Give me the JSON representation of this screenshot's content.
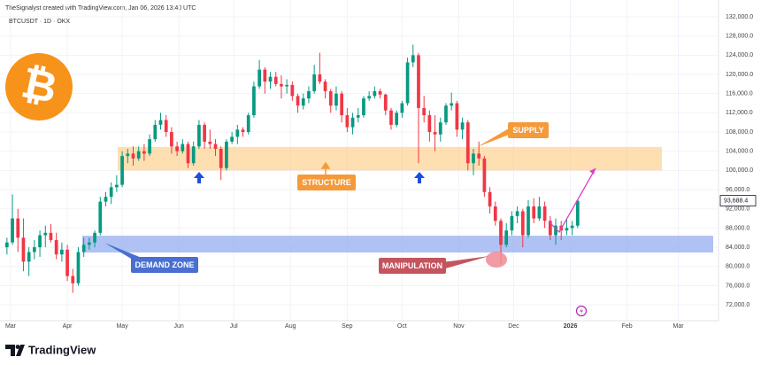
{
  "header": {
    "attribution": "TheSignalyst created with TradingView.com, Jan 06, 2026 13:40 UTC",
    "brand": "TradingView"
  },
  "chart_data": {
    "type": "candlestick",
    "title": "BTCUSDT · 1D · OKX",
    "logo": "₿",
    "up_color": "#089981",
    "down_color": "#f23645",
    "grid": true,
    "xlim": [
      -5.8,
      387
    ],
    "ylim": [
      68700,
      135500
    ],
    "xticks": [
      {
        "value": 0,
        "label": "Mar"
      },
      {
        "value": 31,
        "label": "Apr"
      },
      {
        "value": 61,
        "label": "May"
      },
      {
        "value": 92,
        "label": "Jun"
      },
      {
        "value": 122,
        "label": "Jul"
      },
      {
        "value": 153,
        "label": "Aug"
      },
      {
        "value": 184,
        "label": "Sep"
      },
      {
        "value": 214,
        "label": "Oct"
      },
      {
        "value": 245,
        "label": "Nov"
      },
      {
        "value": 275,
        "label": "Dec"
      },
      {
        "value": 306,
        "label": "2026"
      },
      {
        "value": 337,
        "label": "Feb"
      },
      {
        "value": 365,
        "label": "Mar"
      }
    ],
    "yticks": [
      {
        "value": 72000,
        "label": "72,000.0"
      },
      {
        "value": 76000,
        "label": "76,000.0"
      },
      {
        "value": 80000,
        "label": "80,000.0"
      },
      {
        "value": 84000,
        "label": "84,000.0"
      },
      {
        "value": 88000,
        "label": "88,000.0"
      },
      {
        "value": 92000,
        "label": "92,000.0"
      },
      {
        "value": 96000,
        "label": "96,000.0"
      },
      {
        "value": 100000,
        "label": "100,000.0"
      },
      {
        "value": 104000,
        "label": "104,000.0"
      },
      {
        "value": 108000,
        "label": "108,000.0"
      },
      {
        "value": 112000,
        "label": "112,000.0"
      },
      {
        "value": 116000,
        "label": "116,000.0"
      },
      {
        "value": 120000,
        "label": "120,000.0"
      },
      {
        "value": 124000,
        "label": "124,000.0"
      },
      {
        "value": 128000,
        "label": "128,000.0"
      },
      {
        "value": 132000,
        "label": "132,000.0"
      }
    ],
    "last_price": {
      "value": 93688.4,
      "label": "93,688.4"
    },
    "zones": {
      "supply": [
        100000,
        104900
      ],
      "demand": [
        82900,
        86400
      ]
    },
    "annotations": {
      "supply": "SUPPLY",
      "structure": "STRUCTURE",
      "demand": "DEMAND ZONE",
      "manipulation": "MANIPULATION"
    },
    "x": [
      -2,
      1,
      4,
      7,
      10,
      13,
      16,
      19,
      22,
      25,
      28,
      31,
      34,
      37,
      40,
      43,
      46,
      49,
      52,
      55,
      58,
      61,
      64,
      67,
      70,
      73,
      76,
      79,
      82,
      85,
      88,
      91,
      94,
      97,
      100,
      103,
      106,
      109,
      112,
      115,
      118,
      121,
      124,
      127,
      130,
      133,
      136,
      139,
      142,
      145,
      148,
      151,
      154,
      157,
      160,
      163,
      166,
      169,
      172,
      175,
      178,
      181,
      184,
      187,
      190,
      193,
      196,
      199,
      202,
      205,
      208,
      211,
      214,
      217,
      220,
      223,
      226,
      229,
      232,
      235,
      238,
      241,
      244,
      247,
      250,
      253,
      256,
      259,
      262,
      265,
      268,
      271,
      274,
      277,
      280,
      283,
      286,
      289,
      292,
      295,
      298,
      301,
      304,
      307,
      310
    ],
    "ohlc": [
      [
        84000,
        86000,
        82500,
        85000
      ],
      [
        85000,
        95000,
        84500,
        90000
      ],
      [
        90000,
        92000,
        83000,
        86000
      ],
      [
        86000,
        90000,
        79000,
        81000
      ],
      [
        81000,
        84000,
        78000,
        83000
      ],
      [
        83000,
        85500,
        81500,
        84000
      ],
      [
        84000,
        87500,
        82000,
        86500
      ],
      [
        86500,
        88500,
        84000,
        87000
      ],
      [
        87000,
        88800,
        85000,
        85500
      ],
      [
        85500,
        87000,
        81500,
        82500
      ],
      [
        82500,
        85000,
        81000,
        83500
      ],
      [
        83500,
        84500,
        77000,
        78000
      ],
      [
        78000,
        79500,
        74500,
        76500
      ],
      [
        76500,
        84000,
        76000,
        83000
      ],
      [
        83000,
        86000,
        82000,
        84500
      ],
      [
        84500,
        86000,
        83500,
        85000
      ],
      [
        85000,
        87500,
        84000,
        87000
      ],
      [
        87000,
        94500,
        86500,
        93500
      ],
      [
        93500,
        95500,
        92500,
        94500
      ],
      [
        94500,
        97500,
        93000,
        96500
      ],
      [
        96500,
        99000,
        95500,
        97000
      ],
      [
        97000,
        104000,
        96500,
        103000
      ],
      [
        103000,
        104500,
        101500,
        103500
      ],
      [
        103500,
        105000,
        101000,
        102500
      ],
      [
        102500,
        105000,
        102000,
        104000
      ],
      [
        104000,
        105500,
        102000,
        103500
      ],
      [
        103500,
        107500,
        103000,
        106500
      ],
      [
        106500,
        110500,
        106000,
        109500
      ],
      [
        109500,
        112000,
        108500,
        110500
      ],
      [
        110500,
        111500,
        107000,
        108000
      ],
      [
        108000,
        109000,
        103500,
        105000
      ],
      [
        105000,
        106000,
        103000,
        104000
      ],
      [
        104000,
        106500,
        103500,
        105500
      ],
      [
        105500,
        106000,
        100500,
        101500
      ],
      [
        101500,
        106000,
        101000,
        105000
      ],
      [
        105000,
        110500,
        104500,
        109500
      ],
      [
        109500,
        110000,
        104500,
        106000
      ],
      [
        106000,
        108500,
        104500,
        105500
      ],
      [
        105500,
        106500,
        103000,
        104500
      ],
      [
        104500,
        105000,
        98000,
        100500
      ],
      [
        100500,
        106500,
        100000,
        106000
      ],
      [
        106000,
        108000,
        105500,
        107000
      ],
      [
        107000,
        109500,
        105500,
        108500
      ],
      [
        108500,
        109000,
        107000,
        108000
      ],
      [
        108000,
        112000,
        107500,
        111500
      ],
      [
        111500,
        118500,
        111000,
        117500
      ],
      [
        117500,
        123000,
        117000,
        121000
      ],
      [
        121000,
        121500,
        116000,
        118500
      ],
      [
        118500,
        120500,
        117000,
        119500
      ],
      [
        119500,
        120500,
        117500,
        118000
      ],
      [
        118000,
        119800,
        115000,
        117500
      ],
      [
        117500,
        119000,
        116000,
        117800
      ],
      [
        117800,
        118500,
        114500,
        115500
      ],
      [
        115500,
        116000,
        112000,
        113500
      ],
      [
        113500,
        116000,
        112700,
        115000
      ],
      [
        115000,
        117500,
        114000,
        116500
      ],
      [
        116500,
        122000,
        116000,
        120000
      ],
      [
        120000,
        124500,
        118000,
        118500
      ],
      [
        118500,
        119000,
        115000,
        116500
      ],
      [
        116500,
        117000,
        112000,
        113500
      ],
      [
        113500,
        117500,
        112500,
        116000
      ],
      [
        116000,
        116500,
        110000,
        111500
      ],
      [
        111500,
        113000,
        108000,
        109000
      ],
      [
        109000,
        112000,
        107500,
        111000
      ],
      [
        111000,
        113000,
        110000,
        111500
      ],
      [
        111500,
        115500,
        111000,
        115000
      ],
      [
        115000,
        116500,
        114500,
        115500
      ],
      [
        115500,
        117500,
        115000,
        116500
      ],
      [
        116500,
        117000,
        115000,
        115800
      ],
      [
        115800,
        116000,
        111500,
        112500
      ],
      [
        112500,
        113000,
        108500,
        109500
      ],
      [
        109500,
        112500,
        109000,
        112000
      ],
      [
        112000,
        114500,
        111000,
        114000
      ],
      [
        114000,
        123500,
        113500,
        122500
      ],
      [
        122500,
        126200,
        121500,
        124000
      ],
      [
        124000,
        124500,
        101500,
        113000
      ],
      [
        113000,
        115500,
        110000,
        111500
      ],
      [
        111500,
        112500,
        106000,
        108000
      ],
      [
        108000,
        111500,
        104000,
        107500
      ],
      [
        107500,
        111000,
        106000,
        110000
      ],
      [
        110000,
        114000,
        109500,
        113500
      ],
      [
        113500,
        116200,
        112500,
        114000
      ],
      [
        114000,
        114500,
        107000,
        108500
      ],
      [
        108500,
        111000,
        106500,
        110000
      ],
      [
        110000,
        110500,
        100000,
        101500
      ],
      [
        101500,
        104500,
        99000,
        103500
      ],
      [
        103500,
        106000,
        101000,
        102500
      ],
      [
        102500,
        103000,
        94500,
        95500
      ],
      [
        95500,
        96500,
        91000,
        92500
      ],
      [
        92500,
        93500,
        88500,
        89500
      ],
      [
        89500,
        90000,
        80500,
        84500
      ],
      [
        84500,
        89000,
        84000,
        87500
      ],
      [
        87500,
        91500,
        86500,
        90500
      ],
      [
        90500,
        92500,
        89000,
        91500
      ],
      [
        91500,
        92000,
        84000,
        86500
      ],
      [
        86500,
        93800,
        86000,
        92500
      ],
      [
        92500,
        94200,
        89000,
        90000
      ],
      [
        90000,
        94500,
        89500,
        92500
      ],
      [
        92500,
        93500,
        88000,
        89500
      ],
      [
        89500,
        90500,
        85500,
        86500
      ],
      [
        86500,
        90000,
        84500,
        88500
      ],
      [
        88500,
        89500,
        85500,
        87500
      ],
      [
        87500,
        90000,
        86500,
        88000
      ],
      [
        88000,
        89500,
        86500,
        88500
      ],
      [
        88500,
        94000,
        88000,
        93688.4
      ]
    ]
  }
}
